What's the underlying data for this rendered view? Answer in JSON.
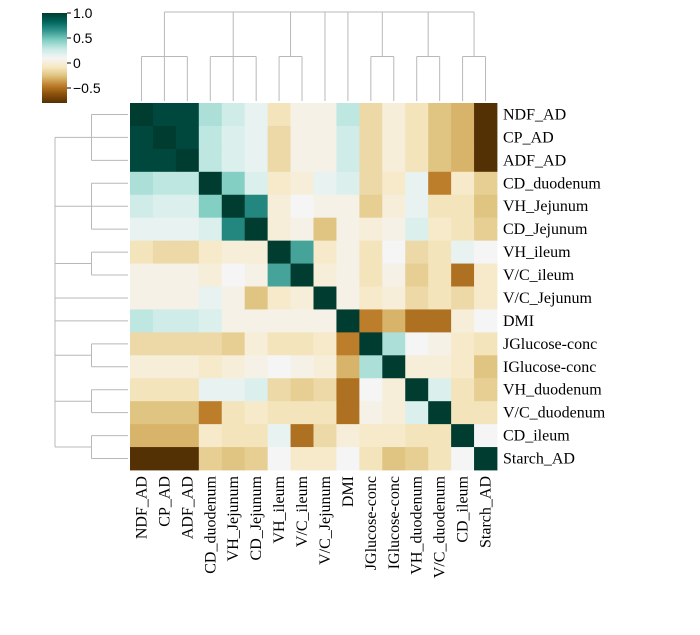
{
  "chart_data": {
    "type": "heatmap",
    "variables": [
      "NDF_AD",
      "CP_AD",
      "ADF_AD",
      "CD_duodenum",
      "VH_Jejunum",
      "CD_Jejunum",
      "VH_ileum",
      "V/C_ileum",
      "V/C_Jejunum",
      "DMI",
      "JGlucose-conc",
      "IGlucose-conc",
      "VH_duodenum",
      "V/C_duodenum",
      "CD_ileum",
      "Starch_AD"
    ],
    "values": [
      [
        1.0,
        0.95,
        0.95,
        0.35,
        0.25,
        0.15,
        -0.1,
        0.05,
        0.05,
        0.3,
        -0.15,
        0.0,
        -0.1,
        -0.25,
        -0.3,
        -0.8
      ],
      [
        0.95,
        1.0,
        0.95,
        0.3,
        0.2,
        0.15,
        -0.15,
        0.05,
        0.05,
        0.25,
        -0.15,
        0.0,
        -0.1,
        -0.25,
        -0.3,
        -0.85
      ],
      [
        0.95,
        0.95,
        1.0,
        0.3,
        0.2,
        0.15,
        -0.15,
        0.05,
        0.05,
        0.25,
        -0.15,
        0.0,
        -0.1,
        -0.25,
        -0.3,
        -0.85
      ],
      [
        0.35,
        0.3,
        0.3,
        1.0,
        0.45,
        0.2,
        -0.05,
        0.0,
        0.15,
        0.2,
        -0.15,
        -0.05,
        0.15,
        -0.45,
        -0.05,
        -0.2
      ],
      [
        0.25,
        0.2,
        0.2,
        0.45,
        1.0,
        0.7,
        0.0,
        0.1,
        0.05,
        0.05,
        -0.2,
        0.0,
        0.15,
        -0.1,
        -0.1,
        -0.25
      ],
      [
        0.15,
        0.15,
        0.15,
        0.2,
        0.7,
        1.0,
        0.0,
        0.05,
        -0.25,
        0.05,
        0.0,
        0.05,
        0.2,
        -0.05,
        -0.1,
        -0.2
      ],
      [
        -0.1,
        -0.15,
        -0.15,
        -0.05,
        0.0,
        0.0,
        1.0,
        0.6,
        -0.05,
        0.05,
        -0.1,
        0.1,
        -0.15,
        -0.1,
        0.15,
        0.1
      ],
      [
        0.05,
        0.05,
        0.05,
        0.0,
        0.1,
        0.05,
        0.6,
        1.0,
        0.0,
        0.05,
        -0.1,
        0.05,
        -0.2,
        -0.1,
        -0.5,
        -0.05
      ],
      [
        0.05,
        0.05,
        0.05,
        0.15,
        0.05,
        -0.25,
        -0.05,
        0.0,
        1.0,
        0.05,
        -0.05,
        0.0,
        -0.15,
        -0.1,
        -0.15,
        -0.05
      ],
      [
        0.3,
        0.25,
        0.25,
        0.2,
        0.05,
        0.05,
        0.05,
        0.05,
        0.05,
        1.0,
        -0.45,
        -0.3,
        -0.5,
        -0.5,
        0.0,
        0.1
      ],
      [
        -0.15,
        -0.15,
        -0.15,
        -0.15,
        -0.2,
        0.0,
        -0.1,
        -0.1,
        -0.05,
        -0.45,
        1.0,
        0.35,
        0.1,
        0.05,
        -0.05,
        -0.1
      ],
      [
        0.0,
        0.0,
        0.0,
        -0.05,
        0.0,
        0.05,
        0.1,
        0.05,
        0.0,
        -0.3,
        0.35,
        1.0,
        0.0,
        0.0,
        -0.05,
        -0.25
      ],
      [
        -0.1,
        -0.1,
        -0.1,
        0.15,
        0.15,
        0.2,
        -0.15,
        -0.2,
        -0.15,
        -0.5,
        0.1,
        0.0,
        1.0,
        0.2,
        -0.1,
        -0.2
      ],
      [
        -0.25,
        -0.25,
        -0.25,
        -0.45,
        -0.1,
        -0.05,
        -0.1,
        -0.1,
        -0.1,
        -0.5,
        0.05,
        0.0,
        0.2,
        1.0,
        -0.1,
        -0.1
      ],
      [
        -0.3,
        -0.3,
        -0.3,
        -0.05,
        -0.1,
        -0.1,
        0.15,
        -0.5,
        -0.15,
        0.0,
        -0.05,
        -0.05,
        -0.1,
        -0.1,
        1.0,
        0.1
      ],
      [
        -0.8,
        -0.85,
        -0.85,
        -0.2,
        -0.25,
        -0.2,
        0.1,
        -0.05,
        -0.05,
        0.1,
        -0.1,
        -0.25,
        -0.2,
        -0.1,
        0.1,
        1.0
      ]
    ],
    "colorbar": {
      "min": -0.8,
      "max": 1.0,
      "ticks": [
        "1.0",
        "0.5",
        "0",
        "−0.5"
      ]
    },
    "colormap": [
      "#543005",
      "#8c510a",
      "#bf812d",
      "#dfc27d",
      "#f6e8c3",
      "#f5f5f5",
      "#c7eae5",
      "#80cdc1",
      "#35978f",
      "#01665e",
      "#003c30"
    ],
    "cluster_tree": [
      [
        0,
        1,
        2
      ],
      [
        3,
        4,
        5
      ],
      [
        6,
        7
      ],
      [
        8
      ],
      [
        9
      ],
      [
        10,
        11
      ],
      [
        12,
        13
      ],
      [
        14,
        15
      ]
    ]
  }
}
